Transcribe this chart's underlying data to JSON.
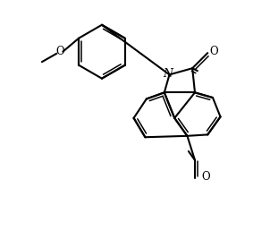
{
  "bg": "#ffffff",
  "lc": "#000000",
  "lw": 1.5,
  "lw2": 1.1,
  "fw": 3.02,
  "fh": 2.58,
  "dpi": 100,
  "xlim": [
    -1.5,
    8.5
  ],
  "ylim": [
    -0.5,
    8.5
  ]
}
